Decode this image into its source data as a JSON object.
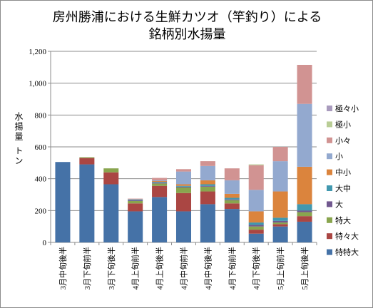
{
  "chart_data": {
    "type": "bar",
    "stacked": true,
    "title": "房州勝浦における生鮮カツオ（竿釣り）による銘柄別水揚量",
    "title_lines": [
      "房州勝浦における生鮮カツオ（竿釣り）による",
      "銘柄別水揚量"
    ],
    "ylabel": "水揚量 トン",
    "xlabel": "",
    "ylim": [
      0,
      1200
    ],
    "yticks": [
      "0",
      "200",
      "400",
      "600",
      "800",
      "1,000",
      "1,200"
    ],
    "grid": true,
    "legend_position": "right",
    "categories": [
      "3月中旬後半",
      "3月下旬前半",
      "3月下旬後半",
      "4月上旬前半",
      "4月上旬後半",
      "4月中旬前半",
      "4月中旬後半",
      "4月下旬前半",
      "4月下旬後半",
      "5月上旬前半",
      "5月上旬後半"
    ],
    "series": [
      {
        "name": "特特大",
        "color": "#4572a7",
        "values": [
          505,
          490,
          365,
          195,
          285,
          195,
          240,
          210,
          55,
          100,
          130
        ]
      },
      {
        "name": "特々大",
        "color": "#aa4643",
        "values": [
          0,
          40,
          75,
          50,
          70,
          115,
          80,
          35,
          25,
          15,
          35
        ]
      },
      {
        "name": "特大",
        "color": "#89a54e",
        "values": [
          0,
          5,
          25,
          15,
          15,
          35,
          30,
          20,
          20,
          10,
          25
        ]
      },
      {
        "name": "大",
        "color": "#71588f",
        "values": [
          0,
          0,
          0,
          5,
          5,
          5,
          5,
          5,
          10,
          10,
          10
        ]
      },
      {
        "name": "大中",
        "color": "#4198af",
        "values": [
          0,
          0,
          0,
          5,
          5,
          5,
          10,
          10,
          15,
          20,
          40
        ]
      },
      {
        "name": "中小",
        "color": "#db843d",
        "values": [
          0,
          0,
          0,
          0,
          5,
          10,
          25,
          25,
          70,
          165,
          235
        ]
      },
      {
        "name": "小",
        "color": "#93a9cf",
        "values": [
          0,
          0,
          0,
          0,
          5,
          80,
          90,
          85,
          135,
          190,
          395
        ]
      },
      {
        "name": "小々",
        "color": "#d19392",
        "values": [
          0,
          0,
          0,
          5,
          15,
          15,
          30,
          75,
          155,
          90,
          245
        ]
      },
      {
        "name": "極小",
        "color": "#b9cd96",
        "values": [
          0,
          0,
          0,
          0,
          0,
          0,
          0,
          0,
          5,
          0,
          0
        ]
      },
      {
        "name": "極々小",
        "color": "#a99bbd",
        "values": [
          0,
          0,
          0,
          0,
          0,
          0,
          0,
          0,
          0,
          0,
          0
        ]
      }
    ]
  }
}
